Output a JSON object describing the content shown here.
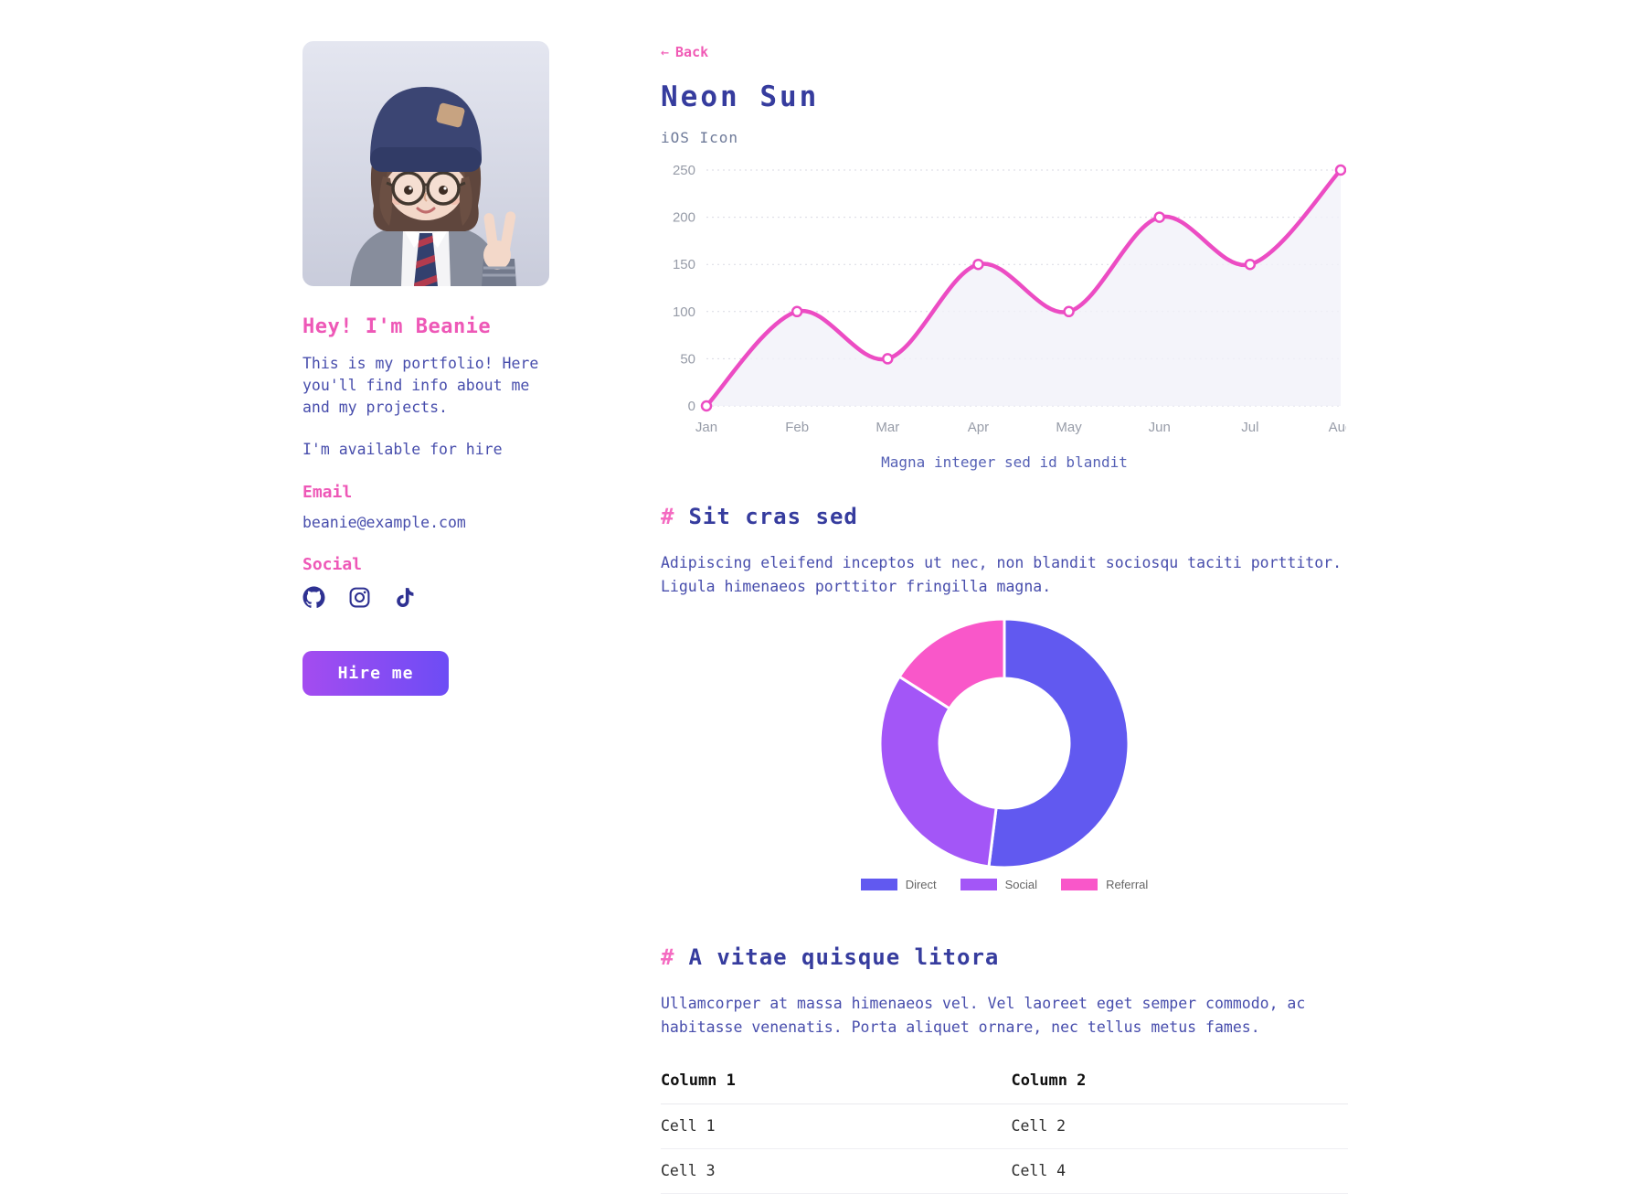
{
  "sidebar": {
    "greeting": "Hey! I'm Beanie",
    "intro": "This is my portfolio! Here you'll find info about me and my projects.",
    "availability": "I'm available for hire",
    "email_label": "Email",
    "email": "beanie@example.com",
    "social_label": "Social",
    "social_icons": [
      "github",
      "instagram",
      "tiktok"
    ],
    "hire_button": "Hire me"
  },
  "header": {
    "back_arrow": "←",
    "back_label": "Back",
    "title": "Neon Sun",
    "subtitle": "iOS Icon"
  },
  "sections": [
    {
      "hash": "#",
      "title": "Sit cras sed",
      "body": "Adipiscing eleifend inceptos ut nec, non blandit sociosqu taciti porttitor. Ligula himenaeos porttitor fringilla magna."
    },
    {
      "hash": "#",
      "title": "A vitae quisque litora",
      "body": "Ullamcorper at massa himenaeos vel. Vel laoreet eget semper commodo, ac habitasse venenatis. Porta aliquet ornare, nec tellus metus fames."
    }
  ],
  "chart_data": [
    {
      "type": "line",
      "title": "",
      "x": [
        "Jan",
        "Feb",
        "Mar",
        "Apr",
        "May",
        "Jun",
        "Jul",
        "Aug"
      ],
      "series": [
        {
          "name": "",
          "values": [
            0,
            100,
            50,
            150,
            100,
            200,
            150,
            250
          ]
        }
      ],
      "ylim": [
        0,
        250
      ],
      "yticks": [
        0,
        50,
        100,
        150,
        200,
        250
      ],
      "grid": "horizontal-dotted",
      "line_color": "#ec4cc3",
      "fill_color": "#f1f1f9",
      "axis_label_color": "#979ca8",
      "caption": "Magna integer sed id blandit"
    },
    {
      "type": "donut",
      "legend_position": "bottom",
      "series": [
        {
          "name": "Direct",
          "value": 52,
          "color": "#6159f0"
        },
        {
          "name": "Social",
          "value": 32,
          "color": "#a356f7"
        },
        {
          "name": "Referral",
          "value": 16,
          "color": "#f957c9"
        }
      ]
    }
  ],
  "table": {
    "headers": [
      "Column 1",
      "Column 2"
    ],
    "rows": [
      [
        "Cell 1",
        "Cell 2"
      ],
      [
        "Cell 3",
        "Cell 4"
      ]
    ]
  },
  "colors": {
    "accent_pink": "#ee58b7",
    "heading_indigo": "#363c9e",
    "body_indigo": "#474dac",
    "subtitle_gray": "#6e7a99",
    "button_gradient_start": "#a44cf0",
    "button_gradient_end": "#6d4cf5",
    "social_icon": "#2e3192"
  }
}
